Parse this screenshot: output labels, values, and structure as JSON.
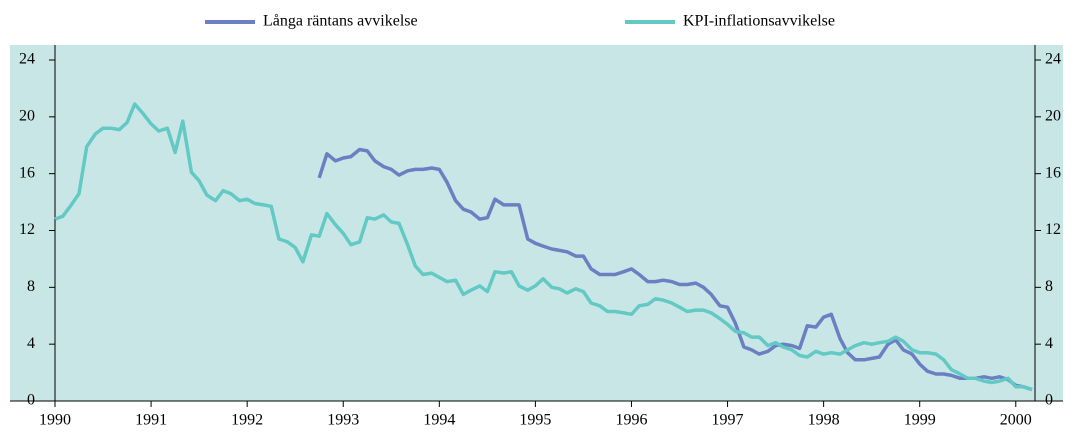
{
  "chart_data": {
    "type": "line",
    "x": [
      1990.0,
      1990.08,
      1990.17,
      1990.25,
      1990.33,
      1990.42,
      1990.5,
      1990.58,
      1990.67,
      1990.75,
      1990.83,
      1990.92,
      1991.0,
      1991.08,
      1991.17,
      1991.25,
      1991.33,
      1991.42,
      1991.5,
      1991.58,
      1991.67,
      1991.75,
      1991.83,
      1991.92,
      1992.0,
      1992.08,
      1992.17,
      1992.25,
      1992.33,
      1992.42,
      1992.5,
      1992.58,
      1992.67,
      1992.75,
      1992.83,
      1992.92,
      1993.0,
      1993.08,
      1993.17,
      1993.25,
      1993.33,
      1993.42,
      1993.5,
      1993.58,
      1993.67,
      1993.75,
      1993.83,
      1993.92,
      1994.0,
      1994.08,
      1994.17,
      1994.25,
      1994.33,
      1994.42,
      1994.5,
      1994.58,
      1994.67,
      1994.75,
      1994.83,
      1994.92,
      1995.0,
      1995.08,
      1995.17,
      1995.25,
      1995.33,
      1995.42,
      1995.5,
      1995.58,
      1995.67,
      1995.75,
      1995.83,
      1995.92,
      1996.0,
      1996.08,
      1996.17,
      1996.25,
      1996.33,
      1996.42,
      1996.5,
      1996.58,
      1996.67,
      1996.75,
      1996.83,
      1996.92,
      1997.0,
      1997.08,
      1997.17,
      1997.25,
      1997.33,
      1997.42,
      1997.5,
      1997.58,
      1997.67,
      1997.75,
      1997.83,
      1997.92,
      1998.0,
      1998.08,
      1998.17,
      1998.25,
      1998.33,
      1998.42,
      1998.5,
      1998.58,
      1998.67,
      1998.75,
      1998.83,
      1998.92,
      1999.0,
      1999.08,
      1999.17,
      1999.25,
      1999.33,
      1999.42,
      1999.5,
      1999.58,
      1999.67,
      1999.75,
      1999.83,
      1999.92,
      2000.0,
      2000.08,
      2000.17
    ],
    "series": [
      {
        "name": "Långa räntans avvikelse",
        "color": "#6b7fc2",
        "values": [
          null,
          null,
          null,
          null,
          null,
          null,
          null,
          null,
          null,
          null,
          null,
          null,
          null,
          null,
          null,
          null,
          null,
          null,
          null,
          null,
          null,
          null,
          null,
          null,
          null,
          null,
          null,
          null,
          null,
          null,
          null,
          null,
          null,
          15.7,
          17.4,
          16.9,
          17.1,
          17.2,
          17.7,
          17.6,
          16.9,
          16.5,
          16.3,
          15.9,
          16.2,
          16.3,
          16.3,
          16.4,
          16.3,
          15.4,
          14.1,
          13.5,
          13.3,
          12.8,
          12.9,
          14.2,
          13.8,
          13.8,
          13.8,
          11.4,
          11.1,
          10.9,
          10.7,
          10.6,
          10.5,
          10.2,
          10.2,
          9.3,
          8.9,
          8.9,
          8.9,
          9.1,
          9.3,
          8.9,
          8.4,
          8.4,
          8.5,
          8.4,
          8.2,
          8.2,
          8.3,
          8.0,
          7.5,
          6.7,
          6.6,
          5.5,
          3.8,
          3.6,
          3.3,
          3.5,
          3.9,
          4.0,
          3.9,
          3.7,
          5.3,
          5.2,
          5.9,
          6.1,
          4.4,
          3.4,
          2.9,
          2.9,
          3.0,
          3.1,
          4.0,
          4.3,
          3.6,
          3.3,
          2.6,
          2.1,
          1.9,
          1.9,
          1.8,
          1.6,
          1.6,
          1.6,
          1.7,
          1.6,
          1.7,
          1.5,
          1.1,
          1.0,
          0.8
        ]
      },
      {
        "name": "KPI-inflationsavvikelse",
        "color": "#62c9c4",
        "values": [
          12.8,
          13.0,
          13.8,
          14.6,
          17.9,
          18.8,
          19.2,
          19.2,
          19.1,
          19.6,
          20.9,
          20.2,
          19.5,
          19.0,
          19.2,
          17.5,
          19.7,
          16.1,
          15.5,
          14.5,
          14.1,
          14.8,
          14.6,
          14.1,
          14.2,
          13.9,
          13.8,
          13.7,
          11.4,
          11.2,
          10.8,
          9.8,
          11.7,
          11.6,
          13.2,
          12.4,
          11.8,
          11.0,
          11.2,
          12.9,
          12.8,
          13.1,
          12.6,
          12.5,
          11.0,
          9.5,
          8.9,
          9.0,
          8.7,
          8.4,
          8.5,
          7.5,
          7.8,
          8.1,
          7.7,
          9.1,
          9.0,
          9.1,
          8.1,
          7.8,
          8.1,
          8.6,
          8.0,
          7.9,
          7.6,
          7.9,
          7.7,
          6.9,
          6.7,
          6.3,
          6.3,
          6.2,
          6.1,
          6.7,
          6.8,
          7.2,
          7.1,
          6.9,
          6.6,
          6.3,
          6.4,
          6.4,
          6.2,
          5.8,
          5.4,
          4.9,
          4.8,
          4.5,
          4.5,
          3.9,
          4.1,
          3.8,
          3.6,
          3.2,
          3.1,
          3.5,
          3.3,
          3.4,
          3.3,
          3.6,
          3.9,
          4.1,
          4.0,
          4.1,
          4.2,
          4.5,
          4.2,
          3.6,
          3.4,
          3.4,
          3.3,
          2.9,
          2.2,
          1.9,
          1.6,
          1.6,
          1.4,
          1.3,
          1.4,
          1.6,
          1.0,
          1.0,
          0.8
        ]
      }
    ],
    "xlim": [
      1990,
      2000.2
    ],
    "xticks": [
      1990,
      1991,
      1992,
      1993,
      1994,
      1995,
      1996,
      1997,
      1998,
      1999,
      2000
    ],
    "ylim": [
      0,
      24
    ],
    "yticks": [
      0,
      4,
      8,
      12,
      16,
      20,
      24
    ],
    "legend": "top",
    "background": "#c9e6e6"
  }
}
